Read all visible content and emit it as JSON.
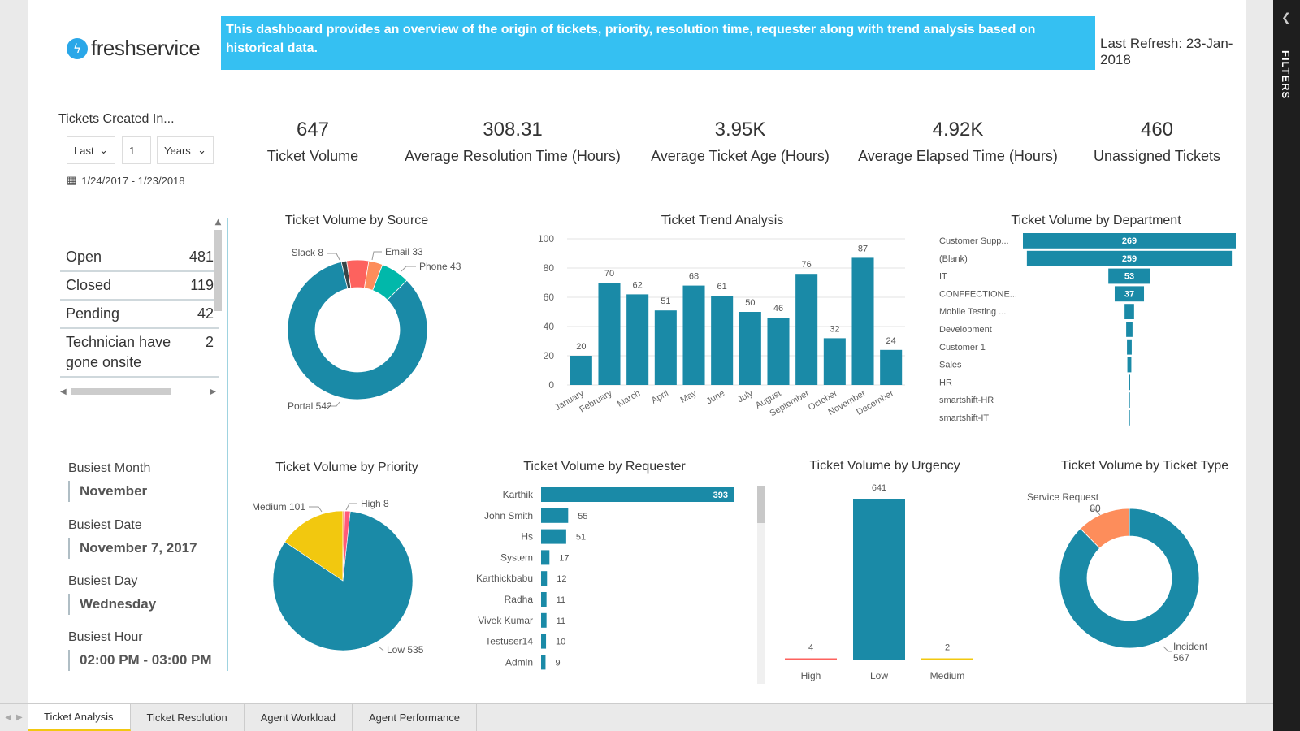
{
  "brand": {
    "name": "freshservice"
  },
  "banner": {
    "text": "This dashboard provides an overview of the origin of tickets, priority, resolution time, requester along with trend analysis based on historical data."
  },
  "refresh": {
    "label": "Last Refresh: 23-Jan-2018"
  },
  "filters_pane": {
    "label": "FILTERS"
  },
  "date_filter": {
    "title": "Tickets Created In...",
    "mode": "Last",
    "count": "1",
    "unit": "Years",
    "range": "1/24/2017 - 1/23/2018"
  },
  "status_list": [
    {
      "label": "Open",
      "value": "481"
    },
    {
      "label": "Closed",
      "value": "119"
    },
    {
      "label": "Pending",
      "value": "42"
    },
    {
      "label": "Technician have gone onsite",
      "value": "2"
    }
  ],
  "kpis": [
    {
      "value": "647",
      "label": "Ticket Volume"
    },
    {
      "value": "308.31",
      "label": "Average Resolution Time (Hours)"
    },
    {
      "value": "3.95K",
      "label": "Average Ticket Age (Hours)"
    },
    {
      "value": "4.92K",
      "label": "Average Elapsed Time (Hours)"
    },
    {
      "value": "460",
      "label": "Unassigned Tickets"
    }
  ],
  "busiest": {
    "month": {
      "label": "Busiest Month",
      "value": "November"
    },
    "date": {
      "label": "Busiest Date",
      "value": "November 7, 2017"
    },
    "day": {
      "label": "Busiest Day",
      "value": "Wednesday"
    },
    "hour": {
      "label": "Busiest Hour",
      "value": "02:00 PM - 03:00 PM"
    }
  },
  "tabs": [
    "Ticket Analysis",
    "Ticket Resolution",
    "Agent Workload",
    "Agent Performance"
  ],
  "colors": {
    "primary": "#1a8aa7",
    "orange": "#fd8d5b",
    "teal": "#01b8aa",
    "red": "#fd625e",
    "dark": "#374649",
    "yellow": "#f2c80f",
    "pink": "#ff5a7a",
    "banner": "#35c0f2"
  },
  "chart_data": [
    {
      "id": "source",
      "type": "pie",
      "donut": true,
      "title": "Ticket Volume by Source",
      "slices": [
        {
          "name": "Portal",
          "value": 542,
          "label": "Portal 542",
          "color": "#1a8aa7"
        },
        {
          "name": "Slack",
          "value": 8,
          "label": "Slack 8",
          "color": "#374649"
        },
        {
          "name": "Email",
          "value": 33,
          "label": "Email 33",
          "color": "#fd625e"
        },
        {
          "name": "",
          "value": 21,
          "label": "",
          "color": "#fd8d5b"
        },
        {
          "name": "Phone",
          "value": 43,
          "label": "Phone 43",
          "color": "#01b8aa"
        }
      ]
    },
    {
      "id": "trend",
      "type": "bar",
      "title": "Ticket Trend Analysis",
      "categories": [
        "January",
        "February",
        "March",
        "April",
        "May",
        "June",
        "July",
        "August",
        "September",
        "October",
        "November",
        "December"
      ],
      "values": [
        20,
        70,
        62,
        51,
        68,
        61,
        50,
        46,
        76,
        32,
        87,
        24
      ],
      "ylim": [
        0,
        100
      ],
      "yticks": [
        0,
        20,
        40,
        60,
        80,
        100
      ],
      "grid": true
    },
    {
      "id": "department",
      "type": "bar",
      "orientation": "funnel",
      "title": "Ticket Volume by Department",
      "categories": [
        "Customer Supp...",
        "(Blank)",
        "IT",
        "CONFFECTIONE...",
        "Mobile Testing ...",
        "Development",
        "Customer 1",
        "Sales",
        "HR",
        "smartshift-HR",
        "smartshift-IT"
      ],
      "values": [
        269,
        259,
        53,
        37,
        12,
        8,
        6,
        5,
        2,
        1,
        1
      ],
      "data_labels": [
        "269",
        "259",
        "53",
        "37",
        "",
        "",
        "",
        "",
        "",
        "",
        ""
      ]
    },
    {
      "id": "priority",
      "type": "pie",
      "title": "Ticket Volume by Priority",
      "slices": [
        {
          "name": "Low",
          "value": 535,
          "label": "Low 535",
          "color": "#1a8aa7"
        },
        {
          "name": "Medium",
          "value": 101,
          "label": "Medium 101",
          "color": "#f2c80f"
        },
        {
          "name": "",
          "value": 3,
          "label": "",
          "color": "#fd8d5b"
        },
        {
          "name": "High",
          "value": 8,
          "label": "High 8",
          "color": "#ff5a7a"
        }
      ]
    },
    {
      "id": "requester",
      "type": "bar",
      "orientation": "horizontal",
      "title": "Ticket Volume by Requester",
      "categories": [
        "Karthik",
        "John Smith",
        "Hs",
        "System",
        "Karthickbabu",
        "Radha",
        "Vivek Kumar",
        "Testuser14",
        "Admin"
      ],
      "values": [
        393,
        55,
        51,
        17,
        12,
        11,
        11,
        10,
        9
      ]
    },
    {
      "id": "urgency",
      "type": "bar",
      "title": "Ticket Volume by Urgency",
      "categories": [
        "High",
        "Low",
        "Medium"
      ],
      "values": [
        4,
        641,
        2
      ],
      "colors": [
        "#fd625e",
        "#1a8aa7",
        "#f2c80f"
      ]
    },
    {
      "id": "tickettype",
      "type": "pie",
      "donut": true,
      "title": "Ticket Volume by Ticket Type",
      "slices": [
        {
          "name": "Incident",
          "value": 567,
          "label": "Incident 567",
          "color": "#1a8aa7"
        },
        {
          "name": "Service Request",
          "value": 80,
          "label": "Service Request 80",
          "color": "#fd8d5b"
        }
      ]
    }
  ]
}
